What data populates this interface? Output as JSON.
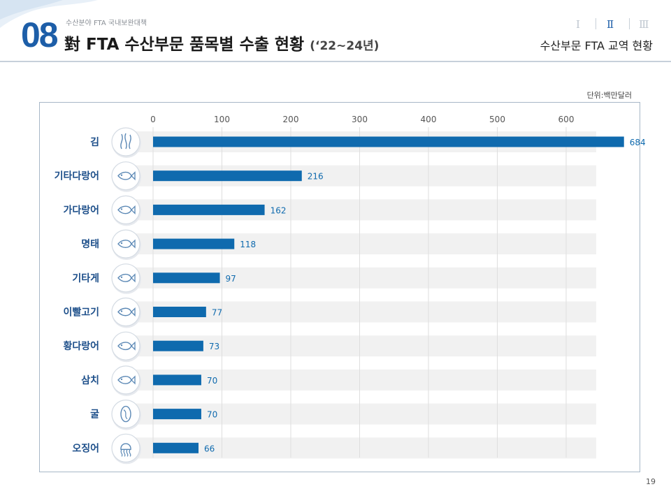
{
  "header": {
    "section_number": "08",
    "breadcrumb": "수산분야 FTA 국내보완대책",
    "title": "對 FTA 수산부문 품목별 수출 현황",
    "title_years": "(‘22~24년)",
    "chapter_nav": [
      "Ⅰ",
      "Ⅱ",
      "Ⅲ"
    ],
    "chapter_active": "Ⅱ",
    "section_title": "수산부문 FTA 교역 현황"
  },
  "unit_label": "단위:백만달러",
  "page_number": "19",
  "colors": {
    "bar": "#0f6aae",
    "value_label": "#0f6aae",
    "category_label": "#1d4f8a",
    "title_number": "#1d5ea8",
    "row_band": "#f1f1f1"
  },
  "chart_data": {
    "type": "bar",
    "orientation": "horizontal",
    "categories": [
      "김",
      "기타다랑어",
      "가다랑어",
      "명태",
      "기타게",
      "이빨고기",
      "황다랑어",
      "삼치",
      "굴",
      "오징어"
    ],
    "icons": [
      "seaweed-icon",
      "fish-icon",
      "fish-icon",
      "fish-icon",
      "fish-icon",
      "fish-icon",
      "fish-icon",
      "fish-icon",
      "oyster-icon",
      "squid-icon"
    ],
    "values": [
      684,
      216,
      162,
      118,
      97,
      77,
      73,
      70,
      70,
      66
    ],
    "x_ticks": [
      0,
      100,
      200,
      300,
      400,
      500,
      600
    ],
    "xlim": [
      0,
      650
    ],
    "axis_position": "top",
    "grid": true
  }
}
